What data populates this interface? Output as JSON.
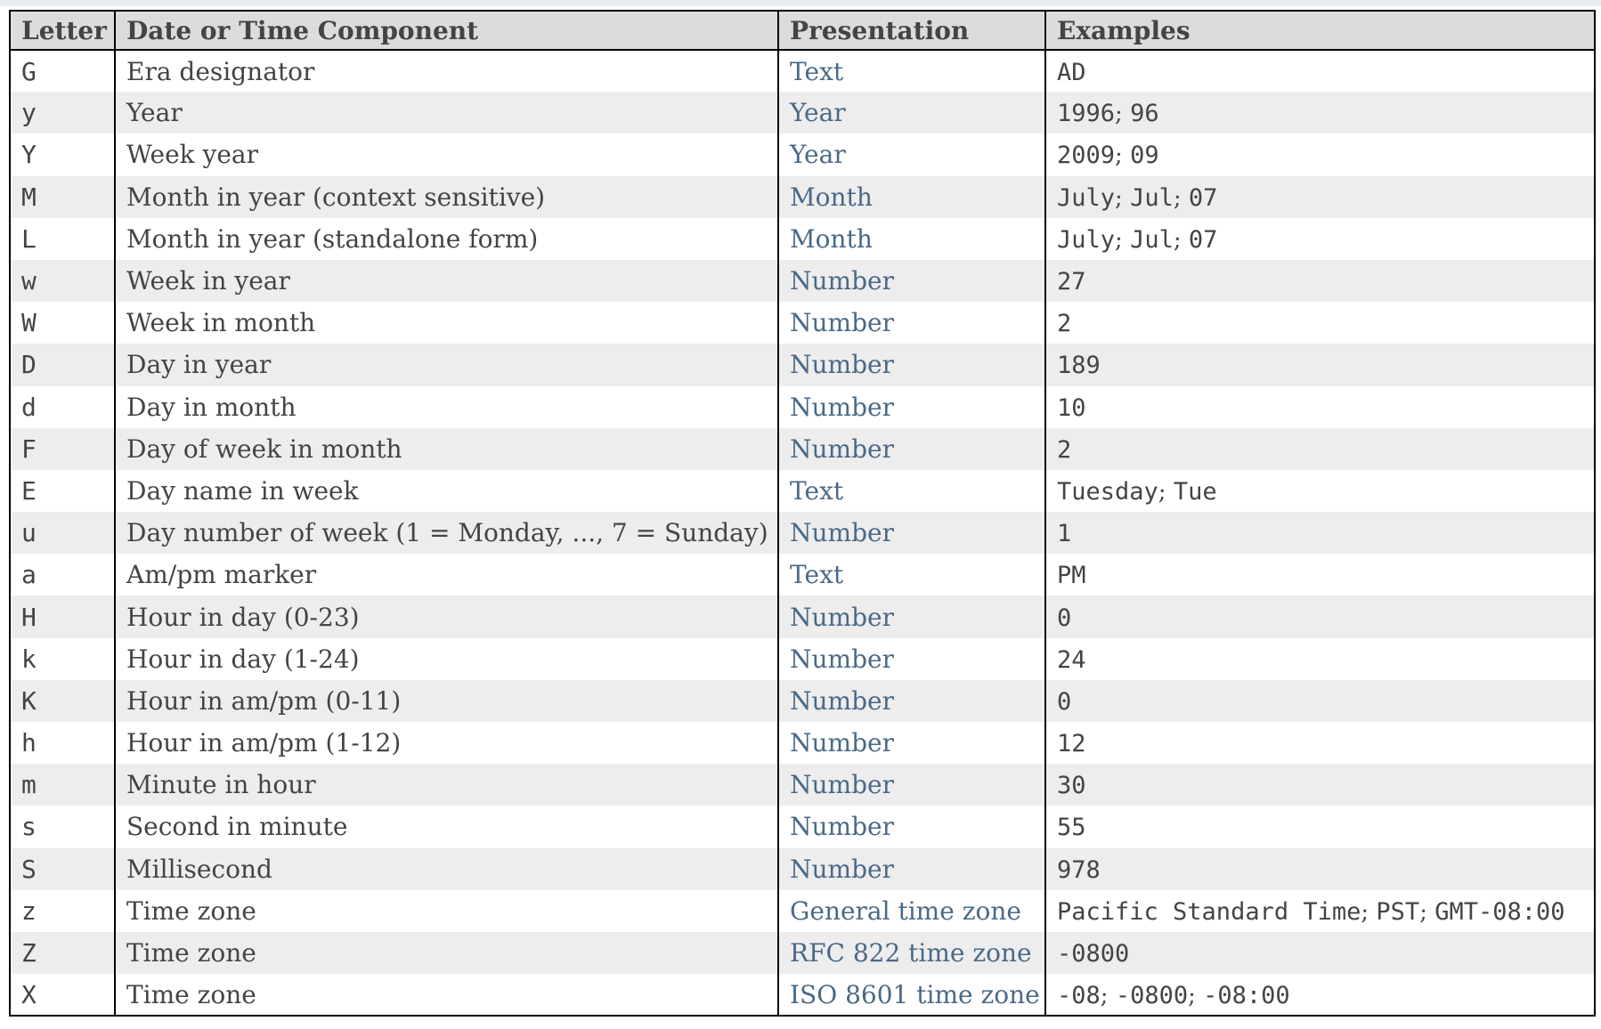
{
  "page": {
    "top_strip_color": "#e8eef4"
  },
  "table": {
    "columns": [
      "Letter",
      "Date or Time Component",
      "Presentation",
      "Examples"
    ],
    "example_separator": "; ",
    "colors": {
      "link": "#4a6987",
      "text": "#444444",
      "header_bg": "#dcdcdc",
      "alt_row_bg": "#ededee",
      "border": "#000000",
      "strip_bg": "#e8eef4"
    },
    "rows": [
      {
        "letter": "G",
        "component": "Era designator",
        "presentation": "Text",
        "examples": [
          "AD"
        ]
      },
      {
        "letter": "y",
        "component": "Year",
        "presentation": "Year",
        "examples": [
          "1996",
          "96"
        ]
      },
      {
        "letter": "Y",
        "component": "Week year",
        "presentation": "Year",
        "examples": [
          "2009",
          "09"
        ]
      },
      {
        "letter": "M",
        "component": "Month in year (context sensitive)",
        "presentation": "Month",
        "examples": [
          "July",
          "Jul",
          "07"
        ]
      },
      {
        "letter": "L",
        "component": "Month in year (standalone form)",
        "presentation": "Month",
        "examples": [
          "July",
          "Jul",
          "07"
        ]
      },
      {
        "letter": "w",
        "component": "Week in year",
        "presentation": "Number",
        "examples": [
          "27"
        ]
      },
      {
        "letter": "W",
        "component": "Week in month",
        "presentation": "Number",
        "examples": [
          "2"
        ]
      },
      {
        "letter": "D",
        "component": "Day in year",
        "presentation": "Number",
        "examples": [
          "189"
        ]
      },
      {
        "letter": "d",
        "component": "Day in month",
        "presentation": "Number",
        "examples": [
          "10"
        ]
      },
      {
        "letter": "F",
        "component": "Day of week in month",
        "presentation": "Number",
        "examples": [
          "2"
        ]
      },
      {
        "letter": "E",
        "component": "Day name in week",
        "presentation": "Text",
        "examples": [
          "Tuesday",
          "Tue"
        ]
      },
      {
        "letter": "u",
        "component": "Day number of week (1 = Monday, ..., 7 = Sunday)",
        "presentation": "Number",
        "examples": [
          "1"
        ]
      },
      {
        "letter": "a",
        "component": "Am/pm marker",
        "presentation": "Text",
        "examples": [
          "PM"
        ]
      },
      {
        "letter": "H",
        "component": "Hour in day (0-23)",
        "presentation": "Number",
        "examples": [
          "0"
        ]
      },
      {
        "letter": "k",
        "component": "Hour in day (1-24)",
        "presentation": "Number",
        "examples": [
          "24"
        ]
      },
      {
        "letter": "K",
        "component": "Hour in am/pm (0-11)",
        "presentation": "Number",
        "examples": [
          "0"
        ]
      },
      {
        "letter": "h",
        "component": "Hour in am/pm (1-12)",
        "presentation": "Number",
        "examples": [
          "12"
        ]
      },
      {
        "letter": "m",
        "component": "Minute in hour",
        "presentation": "Number",
        "examples": [
          "30"
        ]
      },
      {
        "letter": "s",
        "component": "Second in minute",
        "presentation": "Number",
        "examples": [
          "55"
        ]
      },
      {
        "letter": "S",
        "component": "Millisecond",
        "presentation": "Number",
        "examples": [
          "978"
        ]
      },
      {
        "letter": "z",
        "component": "Time zone",
        "presentation": "General time zone",
        "examples": [
          "Pacific Standard Time",
          "PST",
          "GMT-08:00"
        ]
      },
      {
        "letter": "Z",
        "component": "Time zone",
        "presentation": "RFC 822 time zone",
        "examples": [
          "-0800"
        ]
      },
      {
        "letter": "X",
        "component": "Time zone",
        "presentation": "ISO 8601 time zone",
        "examples": [
          "-08",
          "-0800",
          "-08:00"
        ]
      }
    ]
  }
}
